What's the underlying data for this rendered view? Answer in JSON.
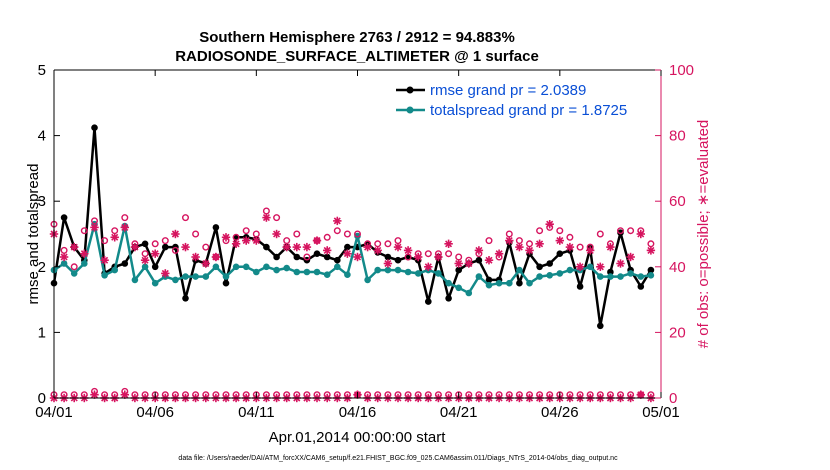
{
  "chart_data": {
    "type": "line",
    "title": "Southern Hemisphere 2763 / 2912 = 94.883%",
    "subtitle": "RADIOSONDE_SURFACE_ALTIMETER @ 1 surface",
    "xlabel": "Apr.01,2014 00:00:00 start",
    "ylabel": "rmse and totalspread",
    "y2label": "# of obs: o=possible; ∗=evaluated",
    "xlim": [
      0,
      30
    ],
    "ylim": [
      0,
      5
    ],
    "y2lim": [
      0,
      100
    ],
    "x_ticks": [
      0,
      5,
      10,
      15,
      20,
      25,
      30
    ],
    "x_tick_labels": [
      "04/01",
      "04/06",
      "04/11",
      "04/16",
      "04/21",
      "04/26",
      "05/01"
    ],
    "y_ticks": [
      0,
      1,
      2,
      3,
      4,
      5
    ],
    "y_tick_labels": [
      "0",
      "1",
      "2",
      "3",
      "4",
      "5"
    ],
    "y2_ticks": [
      0,
      20,
      40,
      60,
      80,
      100
    ],
    "y2_tick_labels": [
      "0",
      "20",
      "40",
      "60",
      "80",
      "100"
    ],
    "legend": [
      {
        "name": "rmse grand pr = 2.0389",
        "color": "#000000"
      },
      {
        "name": "totalspread grand pr = 1.8725",
        "color": "#138a8a"
      }
    ],
    "legend_position": "top-right",
    "footer": "data file: /Users/raeder/DAI/ATM_forcXX/CAM6_setup/f.e21.FHIST_BGC.f09_025.CAM6assim.011/Diags_NTrS_2014-04/obs_diag_output.nc",
    "series": [
      {
        "name": "rmse",
        "color": "#000000",
        "axis": "left",
        "x": [
          0.0,
          0.5,
          1.0,
          1.5,
          2.0,
          2.5,
          3.0,
          3.5,
          4.0,
          4.5,
          5.0,
          5.5,
          6.0,
          6.5,
          7.0,
          7.5,
          8.0,
          8.5,
          9.0,
          9.5,
          10.0,
          10.5,
          11.0,
          11.5,
          12.0,
          12.5,
          13.0,
          13.5,
          14.0,
          14.5,
          15.0,
          15.5,
          16.0,
          16.5,
          17.0,
          17.5,
          18.0,
          18.5,
          19.0,
          19.5,
          20.0,
          20.5,
          21.0,
          21.5,
          22.0,
          22.5,
          23.0,
          23.5,
          24.0,
          24.5,
          25.0,
          25.5,
          26.0,
          26.5,
          27.0,
          27.5,
          28.0,
          28.5,
          29.0,
          29.5
        ],
        "values": [
          1.75,
          2.75,
          2.3,
          2.1,
          4.12,
          1.9,
          2.0,
          2.05,
          2.3,
          2.35,
          2.0,
          2.3,
          2.3,
          1.52,
          2.1,
          2.05,
          2.6,
          1.75,
          2.45,
          2.45,
          2.42,
          2.3,
          2.15,
          2.3,
          2.15,
          2.1,
          2.2,
          2.15,
          2.1,
          2.3,
          2.3,
          2.35,
          2.22,
          2.15,
          2.1,
          2.15,
          2.1,
          1.47,
          2.15,
          1.52,
          1.95,
          2.05,
          2.1,
          1.8,
          1.8,
          2.37,
          1.75,
          2.2,
          2.0,
          2.05,
          2.2,
          2.25,
          1.7,
          2.28,
          1.1,
          1.92,
          2.52,
          1.95,
          1.7,
          1.95
        ]
      },
      {
        "name": "totalspread",
        "color": "#138a8a",
        "axis": "left",
        "x": [
          0.0,
          0.5,
          1.0,
          1.5,
          2.0,
          2.5,
          3.0,
          3.5,
          4.0,
          4.5,
          5.0,
          5.5,
          6.0,
          6.5,
          7.0,
          7.5,
          8.0,
          8.5,
          9.0,
          9.5,
          10.0,
          10.5,
          11.0,
          11.5,
          12.0,
          12.5,
          13.0,
          13.5,
          14.0,
          14.5,
          15.0,
          15.5,
          16.0,
          16.5,
          17.0,
          17.5,
          18.0,
          18.5,
          19.0,
          19.5,
          20.0,
          20.5,
          21.0,
          21.5,
          22.0,
          22.5,
          23.0,
          23.5,
          24.0,
          24.5,
          25.0,
          25.5,
          26.0,
          26.5,
          27.0,
          27.5,
          28.0,
          28.5,
          29.0,
          29.5
        ],
        "values": [
          1.95,
          2.05,
          1.9,
          2.05,
          2.65,
          1.87,
          1.95,
          2.62,
          1.8,
          2.0,
          1.75,
          1.85,
          1.8,
          1.85,
          1.85,
          1.85,
          2.0,
          1.85,
          2.0,
          2.0,
          1.92,
          2.0,
          1.95,
          1.98,
          1.92,
          1.92,
          1.92,
          1.88,
          2.0,
          1.88,
          2.47,
          1.8,
          1.95,
          1.95,
          1.95,
          1.92,
          1.9,
          1.95,
          1.9,
          1.75,
          1.68,
          1.6,
          1.85,
          1.72,
          1.75,
          1.75,
          1.95,
          1.75,
          1.85,
          1.87,
          1.9,
          1.95,
          1.95,
          2.0,
          1.85,
          1.85,
          1.85,
          1.9,
          1.85,
          1.87
        ]
      },
      {
        "name": "obs possible",
        "color": "#d6145f",
        "axis": "right",
        "marker": "o",
        "x": [
          0.0,
          0.5,
          1.0,
          1.5,
          2.0,
          2.5,
          3.0,
          3.5,
          4.0,
          4.5,
          5.0,
          5.5,
          6.0,
          6.5,
          7.0,
          7.5,
          8.0,
          8.5,
          9.0,
          9.5,
          10.0,
          10.5,
          11.0,
          11.5,
          12.0,
          12.5,
          13.0,
          13.5,
          14.0,
          14.5,
          15.0,
          15.5,
          16.0,
          16.5,
          17.0,
          17.5,
          18.0,
          18.5,
          19.0,
          19.5,
          20.0,
          20.5,
          21.0,
          21.5,
          22.0,
          22.5,
          23.0,
          23.5,
          24.0,
          24.5,
          25.0,
          25.5,
          26.0,
          26.5,
          27.0,
          27.5,
          28.0,
          28.5,
          29.0,
          29.5
        ],
        "values": [
          53,
          45,
          40,
          51,
          54,
          48,
          51,
          55,
          47,
          44,
          47,
          48,
          45,
          55,
          50,
          46,
          43,
          48,
          49,
          51,
          50,
          57,
          55,
          48,
          50,
          43,
          48,
          49,
          51,
          50,
          50,
          47,
          47,
          47,
          48,
          43,
          44,
          44,
          44,
          44,
          43,
          42,
          44,
          48,
          43,
          50,
          48,
          47,
          51,
          52,
          51,
          49,
          46,
          46,
          50,
          47,
          51,
          51,
          51,
          47
        ]
      },
      {
        "name": "obs evaluated",
        "color": "#d6145f",
        "axis": "right",
        "marker": "*",
        "x": [
          0.0,
          0.5,
          1.0,
          1.5,
          2.0,
          2.5,
          3.0,
          3.5,
          4.0,
          4.5,
          5.0,
          5.5,
          6.0,
          6.5,
          7.0,
          7.5,
          8.0,
          8.5,
          9.0,
          9.5,
          10.0,
          10.5,
          11.0,
          11.5,
          12.0,
          12.5,
          13.0,
          13.5,
          14.0,
          14.5,
          15.0,
          15.5,
          16.0,
          16.5,
          17.0,
          17.5,
          18.0,
          18.5,
          19.0,
          19.5,
          20.0,
          20.5,
          21.0,
          21.5,
          22.0,
          22.5,
          23.0,
          23.5,
          24.0,
          24.5,
          25.0,
          25.5,
          26.0,
          26.5,
          27.0,
          27.5,
          28.0,
          28.5,
          29.0,
          29.5
        ],
        "values": [
          50,
          43,
          46,
          44,
          52,
          42,
          49,
          52,
          46,
          42,
          44,
          38,
          50,
          46,
          43,
          41,
          43,
          49,
          47,
          48,
          48,
          55,
          50,
          46,
          46,
          46,
          48,
          45,
          54,
          44,
          43,
          46,
          45,
          41,
          46,
          45,
          43,
          40,
          43,
          47,
          41,
          41,
          45,
          42,
          44,
          48,
          46,
          45,
          47,
          53,
          48,
          46,
          40,
          45,
          40,
          46,
          41,
          43,
          50,
          45
        ]
      },
      {
        "name": "obs possible (bottom)",
        "color": "#d6145f",
        "axis": "right",
        "marker": "o",
        "x": [
          0.0,
          0.5,
          1.0,
          1.5,
          2.0,
          2.5,
          3.0,
          3.5,
          4.0,
          4.5,
          5.0,
          5.5,
          6.0,
          6.5,
          7.0,
          7.5,
          8.0,
          8.5,
          9.0,
          9.5,
          10.0,
          10.5,
          11.0,
          11.5,
          12.0,
          12.5,
          13.0,
          13.5,
          14.0,
          14.5,
          15.0,
          15.5,
          16.0,
          16.5,
          17.0,
          17.5,
          18.0,
          18.5,
          19.0,
          19.5,
          20.0,
          20.5,
          21.0,
          21.5,
          22.0,
          22.5,
          23.0,
          23.5,
          24.0,
          24.5,
          25.0,
          25.5,
          26.0,
          26.5,
          27.0,
          27.5,
          28.0,
          28.5,
          29.0,
          29.5
        ],
        "values": [
          1,
          1,
          1,
          1,
          2,
          1,
          1,
          2,
          1,
          1,
          1,
          1,
          1,
          1,
          1,
          1,
          1,
          1,
          1,
          1,
          1,
          1,
          1,
          1,
          1,
          1,
          1,
          1,
          1,
          1,
          1,
          1,
          1,
          1,
          1,
          1,
          1,
          1,
          1,
          1,
          1,
          1,
          1,
          1,
          1,
          1,
          1,
          1,
          1,
          1,
          1,
          1,
          1,
          1,
          1,
          1,
          1,
          1,
          1,
          1
        ]
      },
      {
        "name": "obs evaluated (bottom)",
        "color": "#d6145f",
        "axis": "right",
        "marker": "*",
        "x": [
          0.0,
          0.5,
          1.0,
          1.5,
          2.0,
          2.5,
          3.0,
          3.5,
          4.0,
          4.5,
          5.0,
          5.5,
          6.0,
          6.5,
          7.0,
          7.5,
          8.0,
          8.5,
          9.0,
          9.5,
          10.0,
          10.5,
          11.0,
          11.5,
          12.0,
          12.5,
          13.0,
          13.5,
          14.0,
          14.5,
          15.0,
          15.5,
          16.0,
          16.5,
          17.0,
          17.5,
          18.0,
          18.5,
          19.0,
          19.5,
          20.0,
          20.5,
          21.0,
          21.5,
          22.0,
          22.5,
          23.0,
          23.5,
          24.0,
          24.5,
          25.0,
          25.5,
          26.0,
          26.5,
          27.0,
          27.5,
          28.0,
          28.5,
          29.0,
          29.5
        ],
        "values": [
          0,
          0,
          0,
          0,
          1,
          0,
          0,
          1,
          0,
          0,
          0,
          0,
          0,
          0,
          0,
          0,
          0,
          0,
          0,
          0,
          0,
          0,
          0,
          0,
          0,
          0,
          0,
          0,
          0,
          0,
          1,
          0,
          0,
          0,
          0,
          0,
          0,
          0,
          0,
          0,
          0,
          0,
          0,
          0,
          0,
          0,
          0,
          0,
          0,
          0,
          0,
          0,
          0,
          0,
          0,
          0,
          0,
          0,
          1,
          0
        ]
      }
    ]
  }
}
